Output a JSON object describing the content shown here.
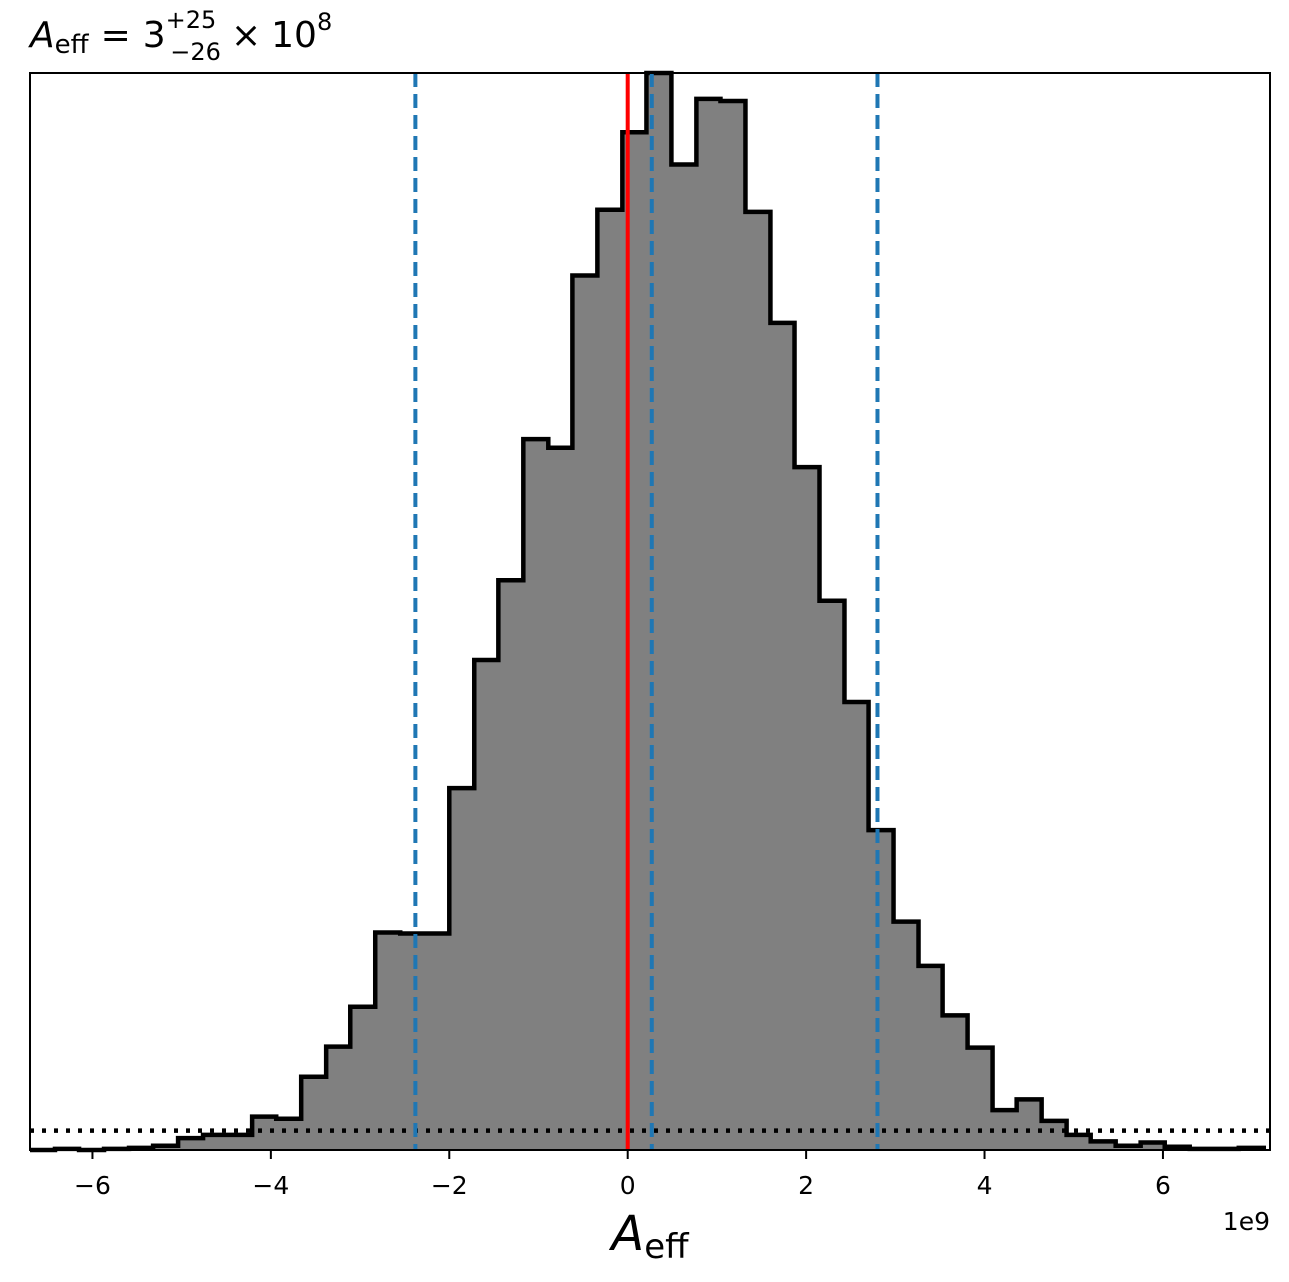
{
  "chart_data": {
    "type": "histogram",
    "title": {
      "symbol": "A",
      "symbol_subscript": "eff",
      "equals": "=",
      "median": "3",
      "plus_err": "+25",
      "minus_err": "−26",
      "times": "×",
      "exp_base": "10",
      "exp_power": "8"
    },
    "xlabel": {
      "symbol": "A",
      "subscript": "eff"
    },
    "x_offset_label": "1e9",
    "xlim": [
      -6.7,
      7.2
    ],
    "ylim": [
      0,
      1.0
    ],
    "x_ticks": [
      -6,
      -4,
      -2,
      0,
      2,
      4,
      6
    ],
    "x_tick_labels": [
      "−6",
      "−4",
      "−2",
      "0",
      "2",
      "4",
      "6"
    ],
    "y_axis_visible": false,
    "bin_edges": [
      -6.7,
      -6.42,
      -6.15,
      -5.87,
      -5.59,
      -5.32,
      -5.04,
      -4.76,
      -4.49,
      -4.21,
      -3.94,
      -3.66,
      -3.38,
      -3.11,
      -2.83,
      -2.55,
      -2.28,
      -2.0,
      -1.72,
      -1.45,
      -1.17,
      -0.89,
      -0.62,
      -0.34,
      -0.06,
      0.21,
      0.49,
      0.77,
      1.04,
      1.32,
      1.6,
      1.87,
      2.15,
      2.43,
      2.7,
      2.98,
      3.26,
      3.53,
      3.81,
      4.09,
      4.36,
      4.64,
      4.92,
      5.19,
      5.47,
      5.75,
      6.02,
      6.3,
      6.58,
      6.85,
      7.13
    ],
    "counts": [
      0.0,
      0.001,
      0.0,
      0.001,
      0.002,
      0.004,
      0.011,
      0.014,
      0.014,
      0.031,
      0.029,
      0.068,
      0.096,
      0.133,
      0.202,
      0.201,
      0.201,
      0.336,
      0.455,
      0.529,
      0.66,
      0.652,
      0.812,
      0.873,
      0.945,
      1.0,
      0.915,
      0.976,
      0.974,
      0.871,
      0.768,
      0.634,
      0.51,
      0.416,
      0.297,
      0.212,
      0.171,
      0.125,
      0.095,
      0.037,
      0.047,
      0.027,
      0.014,
      0.008,
      0.004,
      0.007,
      0.003,
      0.001,
      0.001,
      0.002
    ],
    "hist_fill": "#808080",
    "hist_edge": "#000000",
    "prior_level": 0.018,
    "vlines": [
      {
        "x": 0.0,
        "color": "#ff0000",
        "style": "solid"
      },
      {
        "x": -2.38,
        "color": "#1f77b4",
        "style": "dashed"
      },
      {
        "x": 0.27,
        "color": "#1f77b4",
        "style": "dashed"
      },
      {
        "x": 2.8,
        "color": "#1f77b4",
        "style": "dashed"
      }
    ]
  }
}
